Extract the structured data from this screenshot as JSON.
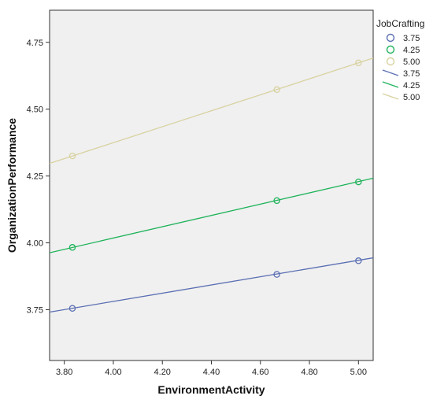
{
  "chart_data": {
    "type": "scatter",
    "xlabel": "EnvironmentActivity",
    "ylabel": "OrganizationPerformance",
    "xlim": [
      3.74,
      5.06
    ],
    "ylim": [
      3.56,
      4.87
    ],
    "xticks": [
      "3.80",
      "4.00",
      "4.20",
      "4.40",
      "4.60",
      "4.80",
      "5.00"
    ],
    "yticks": [
      "3.75",
      "4.00",
      "4.25",
      "4.50",
      "4.75"
    ],
    "grid": false,
    "legend_title": "JobCrafting",
    "legend_position": "right",
    "legend_markers": [
      "3.75",
      "4.25",
      "5.00"
    ],
    "legend_lines": [
      "3.75",
      "4.25",
      "5.00"
    ],
    "series": [
      {
        "name": "3.75",
        "color": "#5b6fb3",
        "x": [
          3.833,
          4.667,
          5.0
        ],
        "y": [
          3.755,
          3.882,
          3.933
        ],
        "line": [
          [
            3.74,
            3.741
          ],
          [
            5.06,
            3.944
          ]
        ]
      },
      {
        "name": "4.25",
        "color": "#1fb35a",
        "x": [
          3.833,
          4.667,
          5.0
        ],
        "y": [
          3.983,
          4.158,
          4.228
        ],
        "line": [
          [
            3.74,
            3.963
          ],
          [
            5.06,
            4.242
          ]
        ]
      },
      {
        "name": "5.00",
        "color": "#d8d2a0",
        "x": [
          3.833,
          4.667,
          5.0
        ],
        "y": [
          4.325,
          4.573,
          4.673
        ],
        "line": [
          [
            3.74,
            4.297
          ],
          [
            5.06,
            4.691
          ]
        ]
      }
    ]
  }
}
